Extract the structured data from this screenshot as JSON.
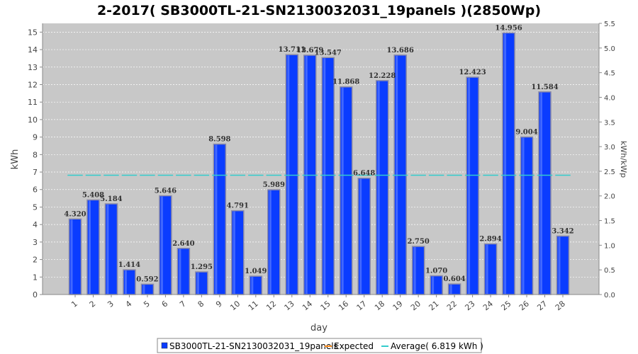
{
  "chart_data": {
    "type": "bar",
    "title": "2-2017( SB3000TL-21-SN2130032031_19panels )(2850Wp)",
    "xlabel": "day",
    "ylabel": "kWh",
    "y2label": "kWh/kWp",
    "categories": [
      "1",
      "2",
      "3",
      "4",
      "5",
      "6",
      "7",
      "8",
      "9",
      "10",
      "11",
      "12",
      "13",
      "14",
      "15",
      "16",
      "17",
      "18",
      "19",
      "20",
      "21",
      "22",
      "23",
      "24",
      "25",
      "26",
      "27",
      "28"
    ],
    "series": [
      {
        "name": "SB3000TL-21-SN2130032031_19panels",
        "color": "#0a3cff",
        "values": [
          4.32,
          5.408,
          5.184,
          1.414,
          0.592,
          5.646,
          2.64,
          1.295,
          8.598,
          4.791,
          1.049,
          5.989,
          13.711,
          13.679,
          13.547,
          11.868,
          6.648,
          12.228,
          13.686,
          2.75,
          1.07,
          0.604,
          12.423,
          2.894,
          14.956,
          9.004,
          11.584,
          3.342
        ],
        "labels": [
          "4.320",
          "5.408",
          "5.184",
          "1.414",
          "0.592",
          "5.646",
          "2.640",
          "1.295",
          "8.598",
          "4.791",
          "1.049",
          "5.989",
          "13.711",
          "13.679",
          "13.547",
          "11.868",
          "6.648",
          "12.228",
          "13.686",
          "2.750",
          "1.070",
          "0.604",
          "12.423",
          "2.894",
          "14.956",
          "9.004",
          "11.584",
          "3.342"
        ]
      }
    ],
    "average": 6.819,
    "ylim": [
      0,
      15.5
    ],
    "yticks": [
      "0",
      "1",
      "2",
      "3",
      "4",
      "5",
      "6",
      "7",
      "8",
      "9",
      "10",
      "11",
      "12",
      "13",
      "14",
      "15"
    ],
    "y2lim": [
      0,
      5.5
    ],
    "y2ticks": [
      "0.0",
      "0.5",
      "1.0",
      "1.5",
      "2.0",
      "2.5",
      "3.0",
      "3.5",
      "4.0",
      "4.5",
      "5.0",
      "5.5"
    ],
    "grid": true,
    "legend_position": "bottom",
    "legend": [
      {
        "label": "SB3000TL-21-SN2130032031_19panels",
        "color": "#0a3cff",
        "kind": "box"
      },
      {
        "label": "Expected",
        "color": "#ff8c1a",
        "kind": "line"
      },
      {
        "label": "Average( 6.819 kWh )",
        "color": "#33cccc",
        "kind": "line"
      }
    ]
  }
}
